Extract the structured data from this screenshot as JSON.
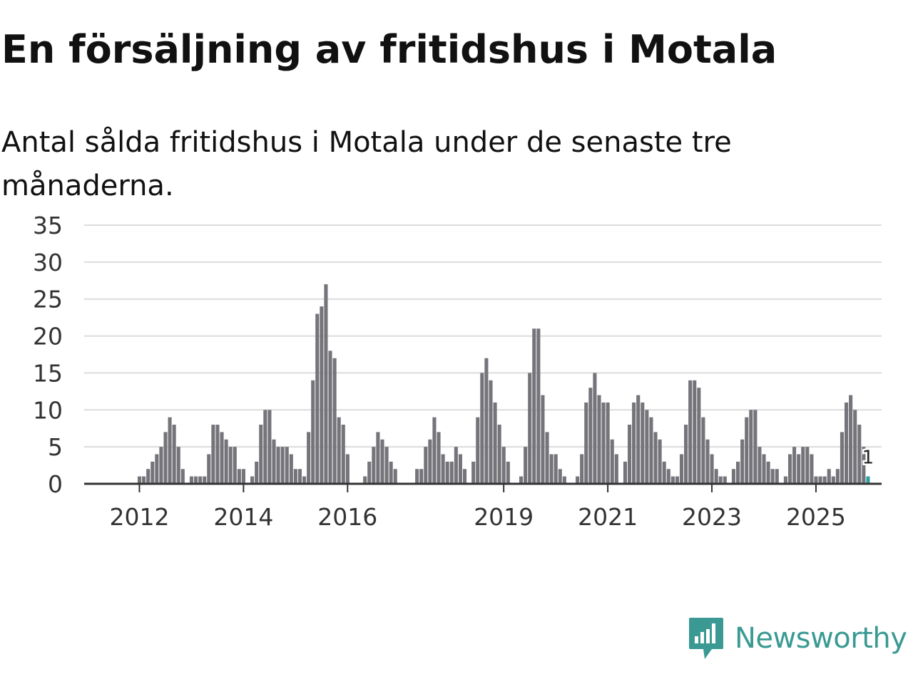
{
  "title": "En försäljning av fritidshus i Motala",
  "subtitle": "Antal sålda fritidshus i Motala under de senaste tre månaderna.",
  "logo": {
    "name": "Newsworthy",
    "icon": "newsworthy-logo-icon",
    "color": "#3a9a93"
  },
  "colors": {
    "bar": "#75747a",
    "highlight": "#2ca0a0",
    "grid": "#dcdcdc",
    "axis": "#333333"
  },
  "chart_data": {
    "type": "bar",
    "start": "2011-01",
    "x_ticks": [
      "2012",
      "2014",
      "2016",
      "2019",
      "2021",
      "2023",
      "2025"
    ],
    "y_ticks": [
      0,
      5,
      10,
      15,
      20,
      25,
      30,
      35
    ],
    "ylim": [
      0,
      35
    ],
    "grid": true,
    "values": [
      0,
      0,
      0,
      0,
      0,
      0,
      0,
      0,
      0,
      0,
      0,
      0,
      1,
      1,
      2,
      3,
      4,
      5,
      7,
      9,
      8,
      5,
      2,
      0,
      1,
      1,
      1,
      1,
      4,
      8,
      8,
      7,
      6,
      5,
      5,
      2,
      2,
      0,
      1,
      3,
      8,
      10,
      10,
      6,
      5,
      5,
      5,
      4,
      2,
      2,
      1,
      7,
      14,
      23,
      24,
      27,
      18,
      17,
      9,
      8,
      4,
      0,
      0,
      0,
      1,
      3,
      5,
      7,
      6,
      5,
      3,
      2,
      0,
      0,
      0,
      0,
      2,
      2,
      5,
      6,
      9,
      7,
      4,
      3,
      3,
      5,
      4,
      2,
      0,
      3,
      9,
      15,
      17,
      14,
      11,
      8,
      5,
      3,
      0,
      0,
      1,
      5,
      15,
      21,
      21,
      12,
      7,
      4,
      4,
      2,
      1,
      0,
      0,
      1,
      4,
      11,
      13,
      15,
      12,
      11,
      11,
      6,
      4,
      0,
      3,
      8,
      11,
      12,
      11,
      10,
      9,
      7,
      6,
      3,
      2,
      1,
      1,
      4,
      8,
      14,
      14,
      13,
      9,
      6,
      4,
      2,
      1,
      1,
      0,
      2,
      3,
      6,
      9,
      10,
      10,
      5,
      4,
      3,
      2,
      2,
      0,
      1,
      4,
      5,
      4,
      5,
      5,
      4,
      1,
      1,
      1,
      2,
      1,
      2,
      7,
      11,
      12,
      10,
      8,
      5,
      1
    ],
    "highlight_label": "1"
  }
}
